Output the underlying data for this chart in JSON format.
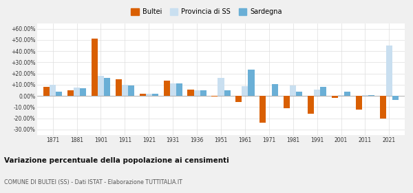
{
  "years": [
    1871,
    1881,
    1901,
    1911,
    1921,
    1931,
    1936,
    1951,
    1961,
    1971,
    1981,
    1991,
    2001,
    2011,
    2021
  ],
  "bultei": [
    8.0,
    5.0,
    51.0,
    15.0,
    2.0,
    13.5,
    5.5,
    -0.5,
    -5.5,
    -24.0,
    -11.0,
    -16.0,
    -1.5,
    -12.0,
    -20.0
  ],
  "provincia_ss": [
    10.0,
    7.5,
    18.0,
    10.0,
    2.0,
    11.0,
    5.0,
    16.0,
    9.0,
    0.0,
    9.5,
    5.5,
    0.5,
    0.5,
    45.0
  ],
  "sardegna": [
    4.0,
    7.0,
    16.0,
    9.5,
    2.0,
    11.0,
    5.0,
    5.0,
    23.5,
    10.5,
    4.0,
    8.0,
    3.5,
    1.0,
    -3.5
  ],
  "color_bultei": "#d95f02",
  "color_provincia": "#c9dff0",
  "color_sardegna": "#6aafd6",
  "title": "Variazione percentuale della popolazione ai censimenti",
  "subtitle": "COMUNE DI BULTEI (SS) - Dati ISTAT - Elaborazione TUTTITALIA.IT",
  "legend_labels": [
    "Bultei",
    "Provincia di SS",
    "Sardegna"
  ],
  "ylim": [
    -35,
    65
  ],
  "yticks": [
    -30,
    -20,
    -10,
    0,
    10,
    20,
    30,
    40,
    50,
    60
  ],
  "ytick_labels": [
    "-30.00%",
    "-20.00%",
    "-10.00%",
    "0.00%",
    "+10.00%",
    "+20.00%",
    "+30.00%",
    "+40.00%",
    "+50.00%",
    "+60.00%"
  ],
  "bg_color": "#f0f0f0",
  "plot_bg_color": "#ffffff",
  "grid_color": "#dddddd"
}
